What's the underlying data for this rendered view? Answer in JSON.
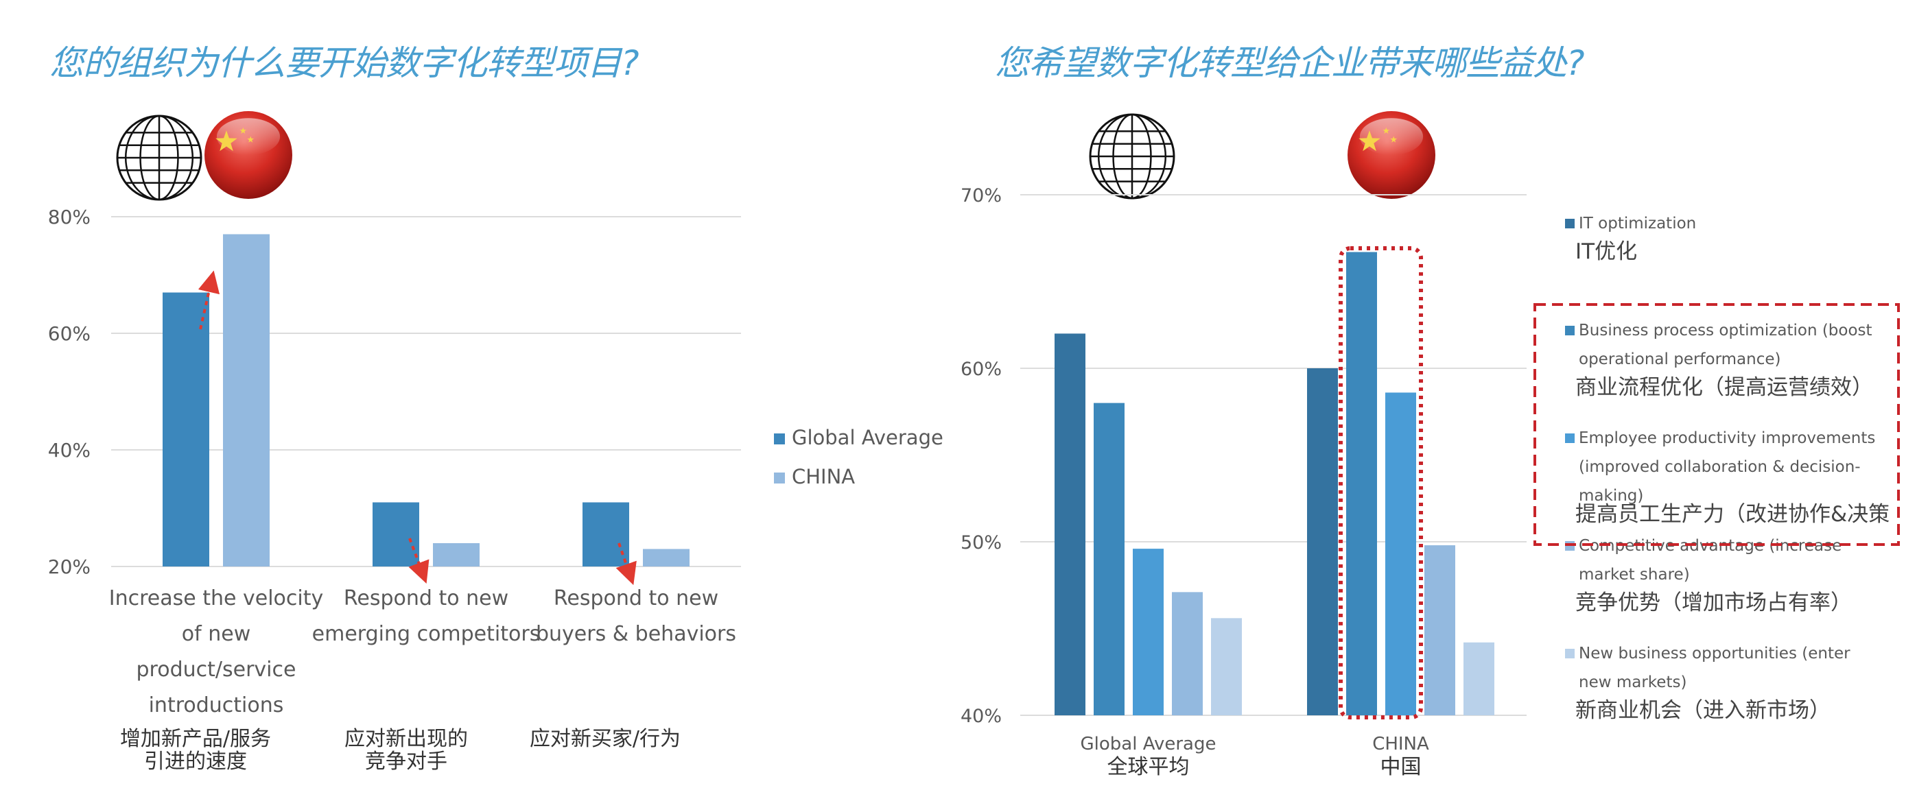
{
  "left": {
    "title": "您的组织为什么要开始数字化转型项目?",
    "icons": [
      "globe-icon",
      "china-flag-icon"
    ],
    "chart_data": {
      "type": "bar",
      "title": "您的组织为什么要开始数字化转型项目?",
      "categories": [
        "Increase the velocity of new product/service introductions",
        "Respond to new emerging competitors",
        "Respond to new buyers & behaviors"
      ],
      "category_lines": [
        [
          "Increase the velocity",
          "of new",
          "product/service",
          "introductions"
        ],
        [
          "Respond to new",
          "emerging competitors"
        ],
        [
          "Respond to new",
          "buyers & behaviors"
        ]
      ],
      "category_cn": [
        [
          "增加新产品/服务",
          "引进的速度"
        ],
        [
          "应对新出现的",
          "竞争对手"
        ],
        [
          "应对新买家/行为"
        ]
      ],
      "series": [
        {
          "name": "Global Average",
          "values": [
            67,
            31,
            31
          ],
          "color": "#3c87bc"
        },
        {
          "name": "CHINA",
          "values": [
            77,
            24,
            23
          ],
          "color": "#93b9df"
        }
      ],
      "ylim": [
        20,
        80
      ],
      "yticks": [
        20,
        40,
        60,
        80
      ],
      "ytick_labels": [
        "20%",
        "40%",
        "60%",
        "80%"
      ],
      "grid": true,
      "legend": "right",
      "arrow_color": "#e03a30"
    }
  },
  "right": {
    "title": "您希望数字化转型给企业带来哪些益处?",
    "icons": [
      "globe-icon",
      "china-flag-icon"
    ],
    "chart_data": {
      "type": "bar",
      "title": "您希望数字化转型给企业带来哪些益处?",
      "categories": [
        "Global Average",
        "CHINA"
      ],
      "category_cn": [
        "全球平均",
        "中国"
      ],
      "series": [
        {
          "name": "IT optimization",
          "name_lines": [
            "IT optimization"
          ],
          "name_cn": "IT优化",
          "values": [
            62,
            60
          ],
          "color": "#3473a0"
        },
        {
          "name": "Business process optimization (boost operational performance)",
          "name_lines": [
            "Business process optimization (boost",
            "operational performance)"
          ],
          "name_cn": "商业流程优化（提高运营绩效）",
          "values": [
            58,
            66.7
          ],
          "color": "#3c88bb"
        },
        {
          "name": "Employee productivity improvements (improved collaboration & decision-making)",
          "name_lines": [
            "Employee productivity improvements",
            "(improved collaboration & decision-",
            "making)"
          ],
          "name_cn": "提高员工生产力（改进协作&决策",
          "values": [
            49.6,
            58.6
          ],
          "color": "#4a9cd6"
        },
        {
          "name": "Competitive advantage (increase market share)",
          "name_lines": [
            "Competitive advantage (increase",
            "market share)"
          ],
          "name_cn": "竞争优势（增加市场占有率）",
          "values": [
            47.1,
            49.8
          ],
          "color": "#93b9df"
        },
        {
          "name": "New business opportunities (enter new markets)",
          "name_lines": [
            "New business opportunities (enter",
            "new markets)"
          ],
          "name_cn": "新商业机会（进入新市场）",
          "values": [
            45.6,
            44.2
          ],
          "color": "#b9d1ea"
        }
      ],
      "ylim": [
        40,
        70
      ],
      "yticks": [
        40,
        50,
        60,
        70
      ],
      "ytick_labels": [
        "40%",
        "50%",
        "60%",
        "70%"
      ],
      "grid": true,
      "legend": "right",
      "highlight_color": "#c8242a"
    }
  }
}
